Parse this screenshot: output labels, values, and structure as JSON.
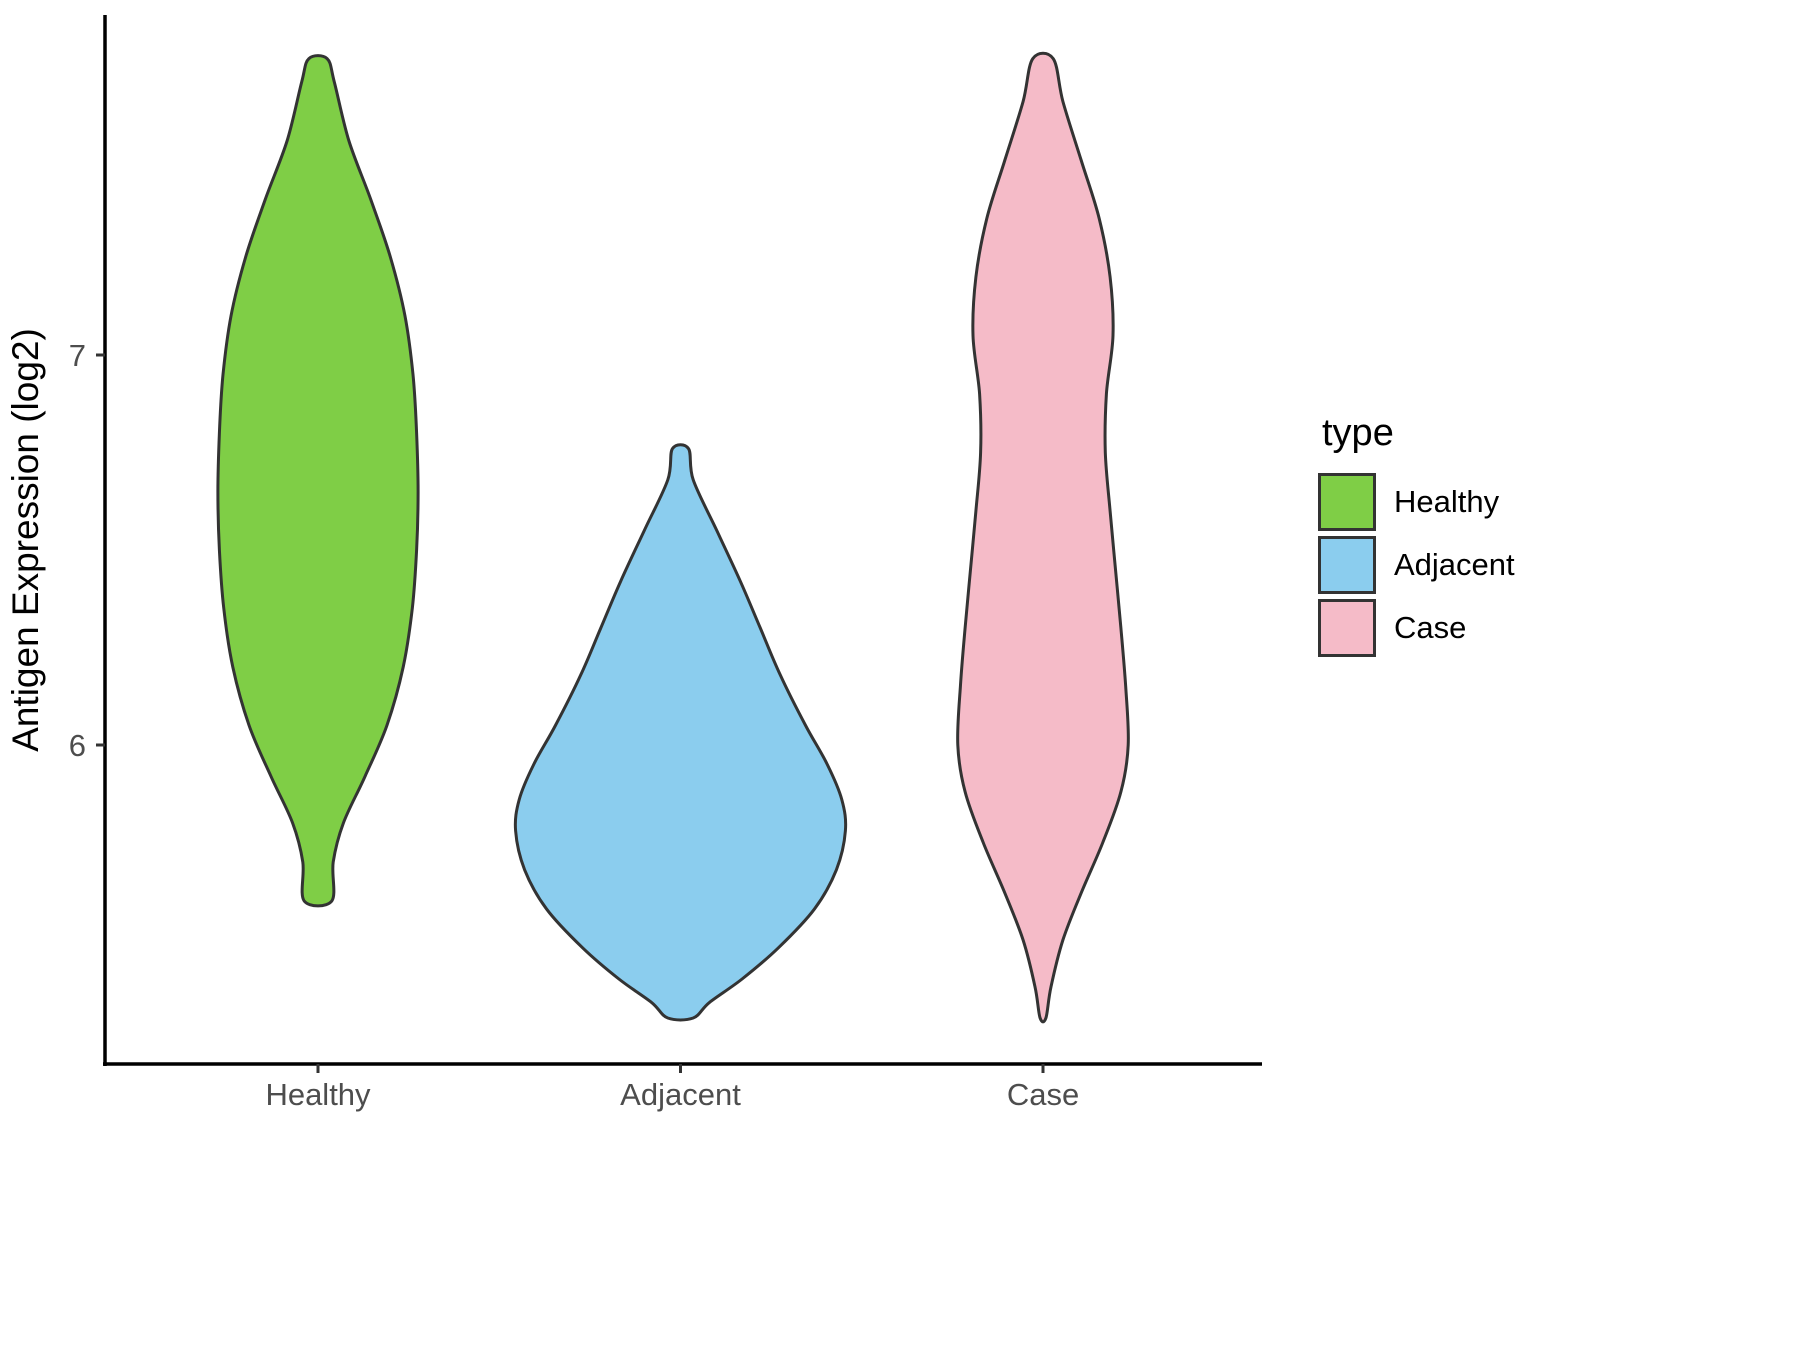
{
  "chart_data": {
    "type": "violin",
    "title": "",
    "xlabel": "",
    "ylabel": "Antigen Expression (log2)",
    "categories": [
      "Healthy",
      "Adjacent",
      "Case"
    ],
    "y_ticks": [
      7,
      6
    ],
    "ylim": [
      5.18,
      7.87
    ],
    "grid": "off",
    "legend": {
      "title": "type",
      "position": "right",
      "entries": [
        {
          "label": "Healthy",
          "fill": "#7FCE46"
        },
        {
          "label": "Adjacent",
          "fill": "#8BCDEE"
        },
        {
          "label": "Case",
          "fill": "#F5BBC8"
        }
      ]
    },
    "stroke_color": "#333333",
    "series": [
      {
        "name": "Healthy",
        "fill": "#7FCE46",
        "profile": [
          [
            7.76,
            0.025
          ],
          [
            7.7,
            0.045
          ],
          [
            7.55,
            0.085
          ],
          [
            7.4,
            0.145
          ],
          [
            7.25,
            0.2
          ],
          [
            7.1,
            0.24
          ],
          [
            6.95,
            0.262
          ],
          [
            6.8,
            0.272
          ],
          [
            6.65,
            0.276
          ],
          [
            6.5,
            0.272
          ],
          [
            6.35,
            0.26
          ],
          [
            6.2,
            0.235
          ],
          [
            6.05,
            0.19
          ],
          [
            5.92,
            0.13
          ],
          [
            5.8,
            0.07
          ],
          [
            5.7,
            0.042
          ],
          [
            5.6,
            0.038
          ]
        ]
      },
      {
        "name": "Adjacent",
        "fill": "#8BCDEE",
        "profile": [
          [
            6.76,
            0.022
          ],
          [
            6.68,
            0.035
          ],
          [
            6.55,
            0.1
          ],
          [
            6.42,
            0.165
          ],
          [
            6.3,
            0.22
          ],
          [
            6.18,
            0.275
          ],
          [
            6.05,
            0.345
          ],
          [
            5.95,
            0.405
          ],
          [
            5.86,
            0.445
          ],
          [
            5.78,
            0.455
          ],
          [
            5.68,
            0.43
          ],
          [
            5.58,
            0.37
          ],
          [
            5.48,
            0.27
          ],
          [
            5.4,
            0.17
          ],
          [
            5.34,
            0.08
          ],
          [
            5.3,
            0.035
          ]
        ]
      },
      {
        "name": "Case",
        "fill": "#F5BBC8",
        "profile": [
          [
            7.76,
            0.028
          ],
          [
            7.65,
            0.055
          ],
          [
            7.5,
            0.105
          ],
          [
            7.35,
            0.155
          ],
          [
            7.2,
            0.185
          ],
          [
            7.05,
            0.193
          ],
          [
            6.9,
            0.175
          ],
          [
            6.75,
            0.172
          ],
          [
            6.6,
            0.185
          ],
          [
            6.45,
            0.2
          ],
          [
            6.3,
            0.215
          ],
          [
            6.15,
            0.228
          ],
          [
            6.0,
            0.235
          ],
          [
            5.88,
            0.215
          ],
          [
            5.75,
            0.165
          ],
          [
            5.62,
            0.105
          ],
          [
            5.5,
            0.055
          ],
          [
            5.38,
            0.022
          ],
          [
            5.3,
            0.008
          ]
        ]
      }
    ]
  }
}
